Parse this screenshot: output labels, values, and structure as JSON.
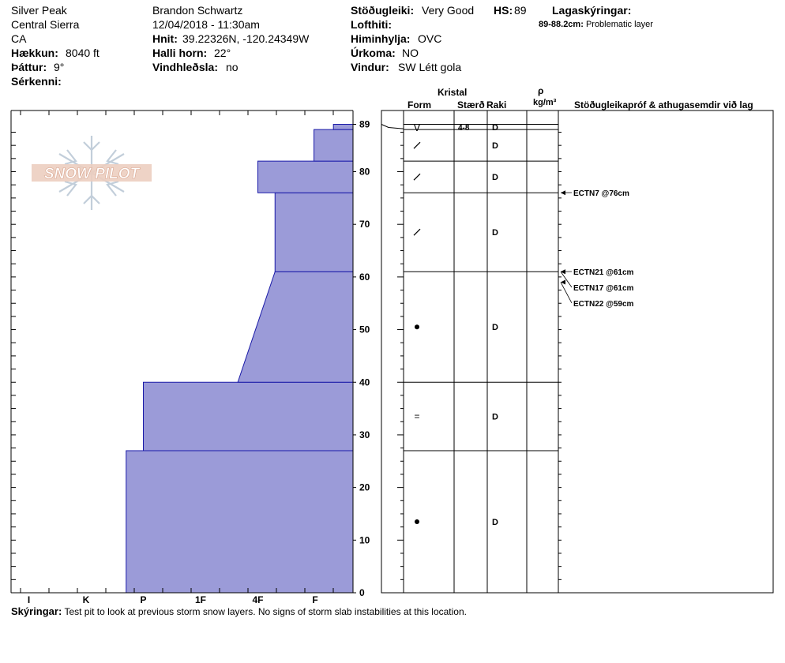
{
  "header": {
    "location": "Silver Peak",
    "range": "Central Sierra",
    "state": "CA",
    "elevation_label": "Hækkun:",
    "elevation_value": "8040 ft",
    "aspect_label": "Þáttur:",
    "aspect_value": "9°",
    "special_label": "Sérkenni:",
    "observer": "Brandon Schwartz",
    "datetime": "12/04/2018 - 11:30am",
    "coords_label": "Hnit:",
    "coords_value": "39.22326N, -120.24349W",
    "slope_label": "Halli horn:",
    "slope_value": "22°",
    "windload_label": "Vindhleðsla:",
    "windload_value": "no",
    "stability_label": "Stöðugleiki:",
    "stability_value": "Very Good",
    "hs_label": "HS:",
    "hs_value": "89",
    "airtemp_label": "Lofthiti:",
    "sky_label": "Himinhylja:",
    "sky_value": "OVC",
    "precip_label": "Úrkoma:",
    "precip_value": "NO",
    "wind_label": "Vindur:",
    "wind_value": "SW Létt gola",
    "layer_notes_label": "Lagaskýringar:",
    "layer_note_range": "89-88.2cm:",
    "layer_note_text": "Problematic layer"
  },
  "logo": {
    "text": "SNOW PILOT"
  },
  "columns": {
    "crystal": "Kristal",
    "form": "Form",
    "size": "Stærð",
    "moisture": "Raki",
    "rho": "ρ",
    "density_unit": "kg/m³",
    "tests_header": "Stöðugleikapróf & athugasemdir við lag"
  },
  "footer": {
    "label": "Skýringar:",
    "text": "Test pit to look at previous storm snow layers.  No signs of storm slab instabilities at this location."
  },
  "chart_data": {
    "type": "area",
    "title": "",
    "ylabel": "",
    "ylim": [
      0,
      89
    ],
    "yticks": [
      0,
      10,
      20,
      30,
      40,
      50,
      60,
      70,
      80,
      89
    ],
    "x_categories": [
      "I",
      "K",
      "P",
      "1F",
      "4F",
      "F"
    ],
    "hardness_profile": [
      {
        "bottom": 0,
        "top": 27,
        "hardness_bottom": "P-",
        "hardness_top": "P-"
      },
      {
        "bottom": 27,
        "top": 40,
        "hardness_bottom": "P",
        "hardness_top": "P"
      },
      {
        "bottom": 40,
        "top": 61,
        "hardness_bottom": "1F+",
        "hardness_top": "4F+"
      },
      {
        "bottom": 61,
        "top": 76,
        "hardness_bottom": "4F+",
        "hardness_top": "4F+"
      },
      {
        "bottom": 76,
        "top": 82,
        "hardness_bottom": "4F",
        "hardness_top": "4F"
      },
      {
        "bottom": 82,
        "top": 88,
        "hardness_bottom": "F-",
        "hardness_top": "F-"
      },
      {
        "bottom": 88,
        "top": 89,
        "hardness_bottom": "F+",
        "hardness_top": "F+"
      }
    ],
    "hardness_units": [
      {
        "bottom": 0,
        "top": 27,
        "h_bottom": 2.7,
        "h_top": 2.7
      },
      {
        "bottom": 27,
        "top": 40,
        "h_bottom": 3.0,
        "h_top": 3.0
      },
      {
        "bottom": 40,
        "top": 61,
        "h_bottom": 4.65,
        "h_top": 5.3
      },
      {
        "bottom": 61,
        "top": 76,
        "h_bottom": 5.3,
        "h_top": 5.3
      },
      {
        "bottom": 76,
        "top": 82,
        "h_bottom": 5.0,
        "h_top": 5.0
      },
      {
        "bottom": 82,
        "top": 88,
        "h_bottom": 5.98,
        "h_top": 5.98
      },
      {
        "bottom": 88,
        "top": 89,
        "h_bottom": 6.32,
        "h_top": 6.32
      }
    ],
    "layers": [
      {
        "bottom": 88,
        "top": 89,
        "form": "V",
        "size": "4-8",
        "moisture": "D"
      },
      {
        "bottom": 82,
        "top": 88,
        "form": "/",
        "size": "",
        "moisture": "D"
      },
      {
        "bottom": 76,
        "top": 82,
        "form": "/",
        "size": "",
        "moisture": "D"
      },
      {
        "bottom": 61,
        "top": 76,
        "form": "/",
        "size": "",
        "moisture": "D"
      },
      {
        "bottom": 40,
        "top": 61,
        "form": "•",
        "size": "",
        "moisture": "D"
      },
      {
        "bottom": 27,
        "top": 40,
        "form": "=",
        "size": "",
        "moisture": "D"
      },
      {
        "bottom": 0,
        "top": 27,
        "form": "•",
        "size": "",
        "moisture": "D"
      }
    ],
    "tests": [
      {
        "depth": 76,
        "label": "ECTN7 @76cm"
      },
      {
        "depth": 61,
        "label": "ECTN21 @61cm"
      },
      {
        "depth": 61,
        "label": "ECTN17 @61cm"
      },
      {
        "depth": 59,
        "label": "ECTN22 @59cm"
      }
    ],
    "fill_color": "#9b9bd8",
    "line_color": "#1a1aa8"
  }
}
